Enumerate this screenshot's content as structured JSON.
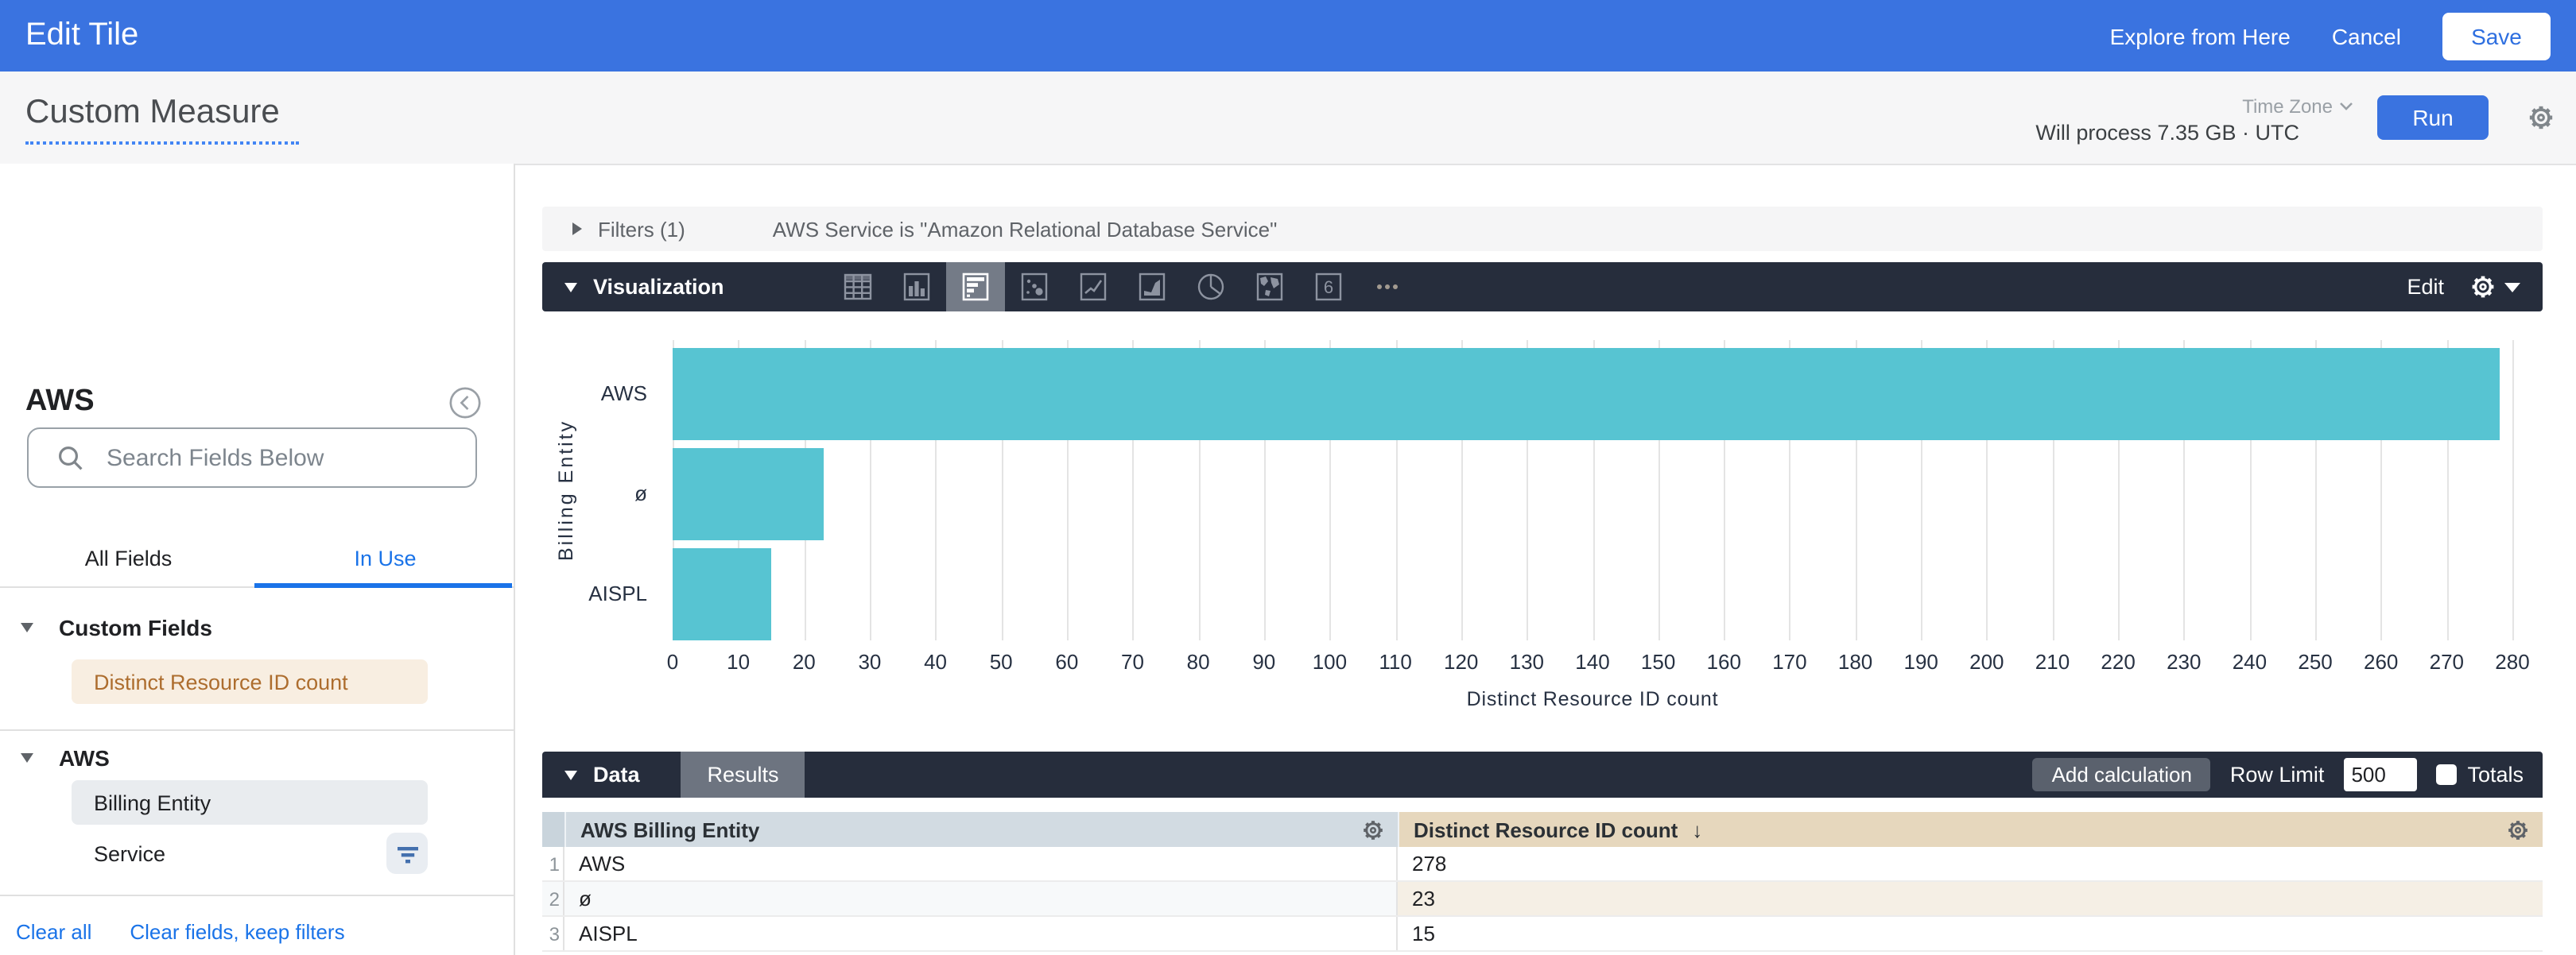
{
  "topbar": {
    "title": "Edit Tile",
    "explore_link": "Explore from Here",
    "cancel_link": "Cancel",
    "save_button": "Save"
  },
  "header": {
    "title": "Custom Measure",
    "timezone_label": "Time Zone",
    "process_text": "Will process 7.35 GB · UTC",
    "run_button": "Run"
  },
  "sidebar": {
    "model_name": "AWS",
    "search_placeholder": "Search Fields Below",
    "tabs": {
      "all_fields": "All Fields",
      "in_use": "In Use"
    },
    "custom_fields_title": "Custom Fields",
    "custom_field_item": "Distinct Resource ID count",
    "view_title": "AWS",
    "fields": {
      "billing_entity": "Billing Entity",
      "service": "Service"
    },
    "clear_all_link": "Clear all",
    "clear_fields_link": "Clear fields, keep filters"
  },
  "filters": {
    "label": "Filters (1)",
    "summary": "AWS Service is \"Amazon Relational Database Service\""
  },
  "viz": {
    "label": "Visualization",
    "edit_button": "Edit",
    "icons": [
      "table-chart-icon",
      "column-chart-icon",
      "bar-chart-icon",
      "scatter-chart-icon",
      "line-chart-icon",
      "area-chart-icon",
      "pie-chart-icon",
      "map-chart-icon",
      "single-value-icon",
      "more-viz-icon"
    ],
    "selected_icon": "bar-chart-icon",
    "single_value_glyph": "6"
  },
  "chart_data": {
    "type": "bar",
    "orientation": "horizontal",
    "categories": [
      "AWS",
      "ø",
      "AISPL"
    ],
    "values": [
      278,
      23,
      15
    ],
    "title": "",
    "xlabel": "Distinct Resource ID count",
    "ylabel": "Billing Entity",
    "xlim": [
      0,
      280
    ],
    "tick_step": 10,
    "grid": true,
    "legend": false,
    "bar_color": "#57c4d2"
  },
  "data_section": {
    "label": "Data",
    "results_tab": "Results",
    "add_calculation_button": "Add calculation",
    "row_limit_label": "Row Limit",
    "row_limit_value": "500",
    "totals_label": "Totals"
  },
  "table": {
    "columns": [
      "AWS Billing Entity",
      "Distinct Resource ID count"
    ],
    "sort_arrow": "↓",
    "rows": [
      {
        "num": "1",
        "dim": "AWS",
        "val": "278"
      },
      {
        "num": "2",
        "dim": "ø",
        "val": "23"
      },
      {
        "num": "3",
        "dim": "AISPL",
        "val": "15"
      }
    ]
  },
  "colors": {
    "topbar_blue": "#3a73e0",
    "accent_blue": "#1a73e8",
    "dark_bar": "#262d3c",
    "bar_teal": "#57c4d2",
    "dimension_header": "#d2dbe2",
    "measure_header": "#e6d7bd",
    "custom_field_chip_bg": "#f8eee1",
    "custom_field_chip_text": "#ad6d2e"
  }
}
